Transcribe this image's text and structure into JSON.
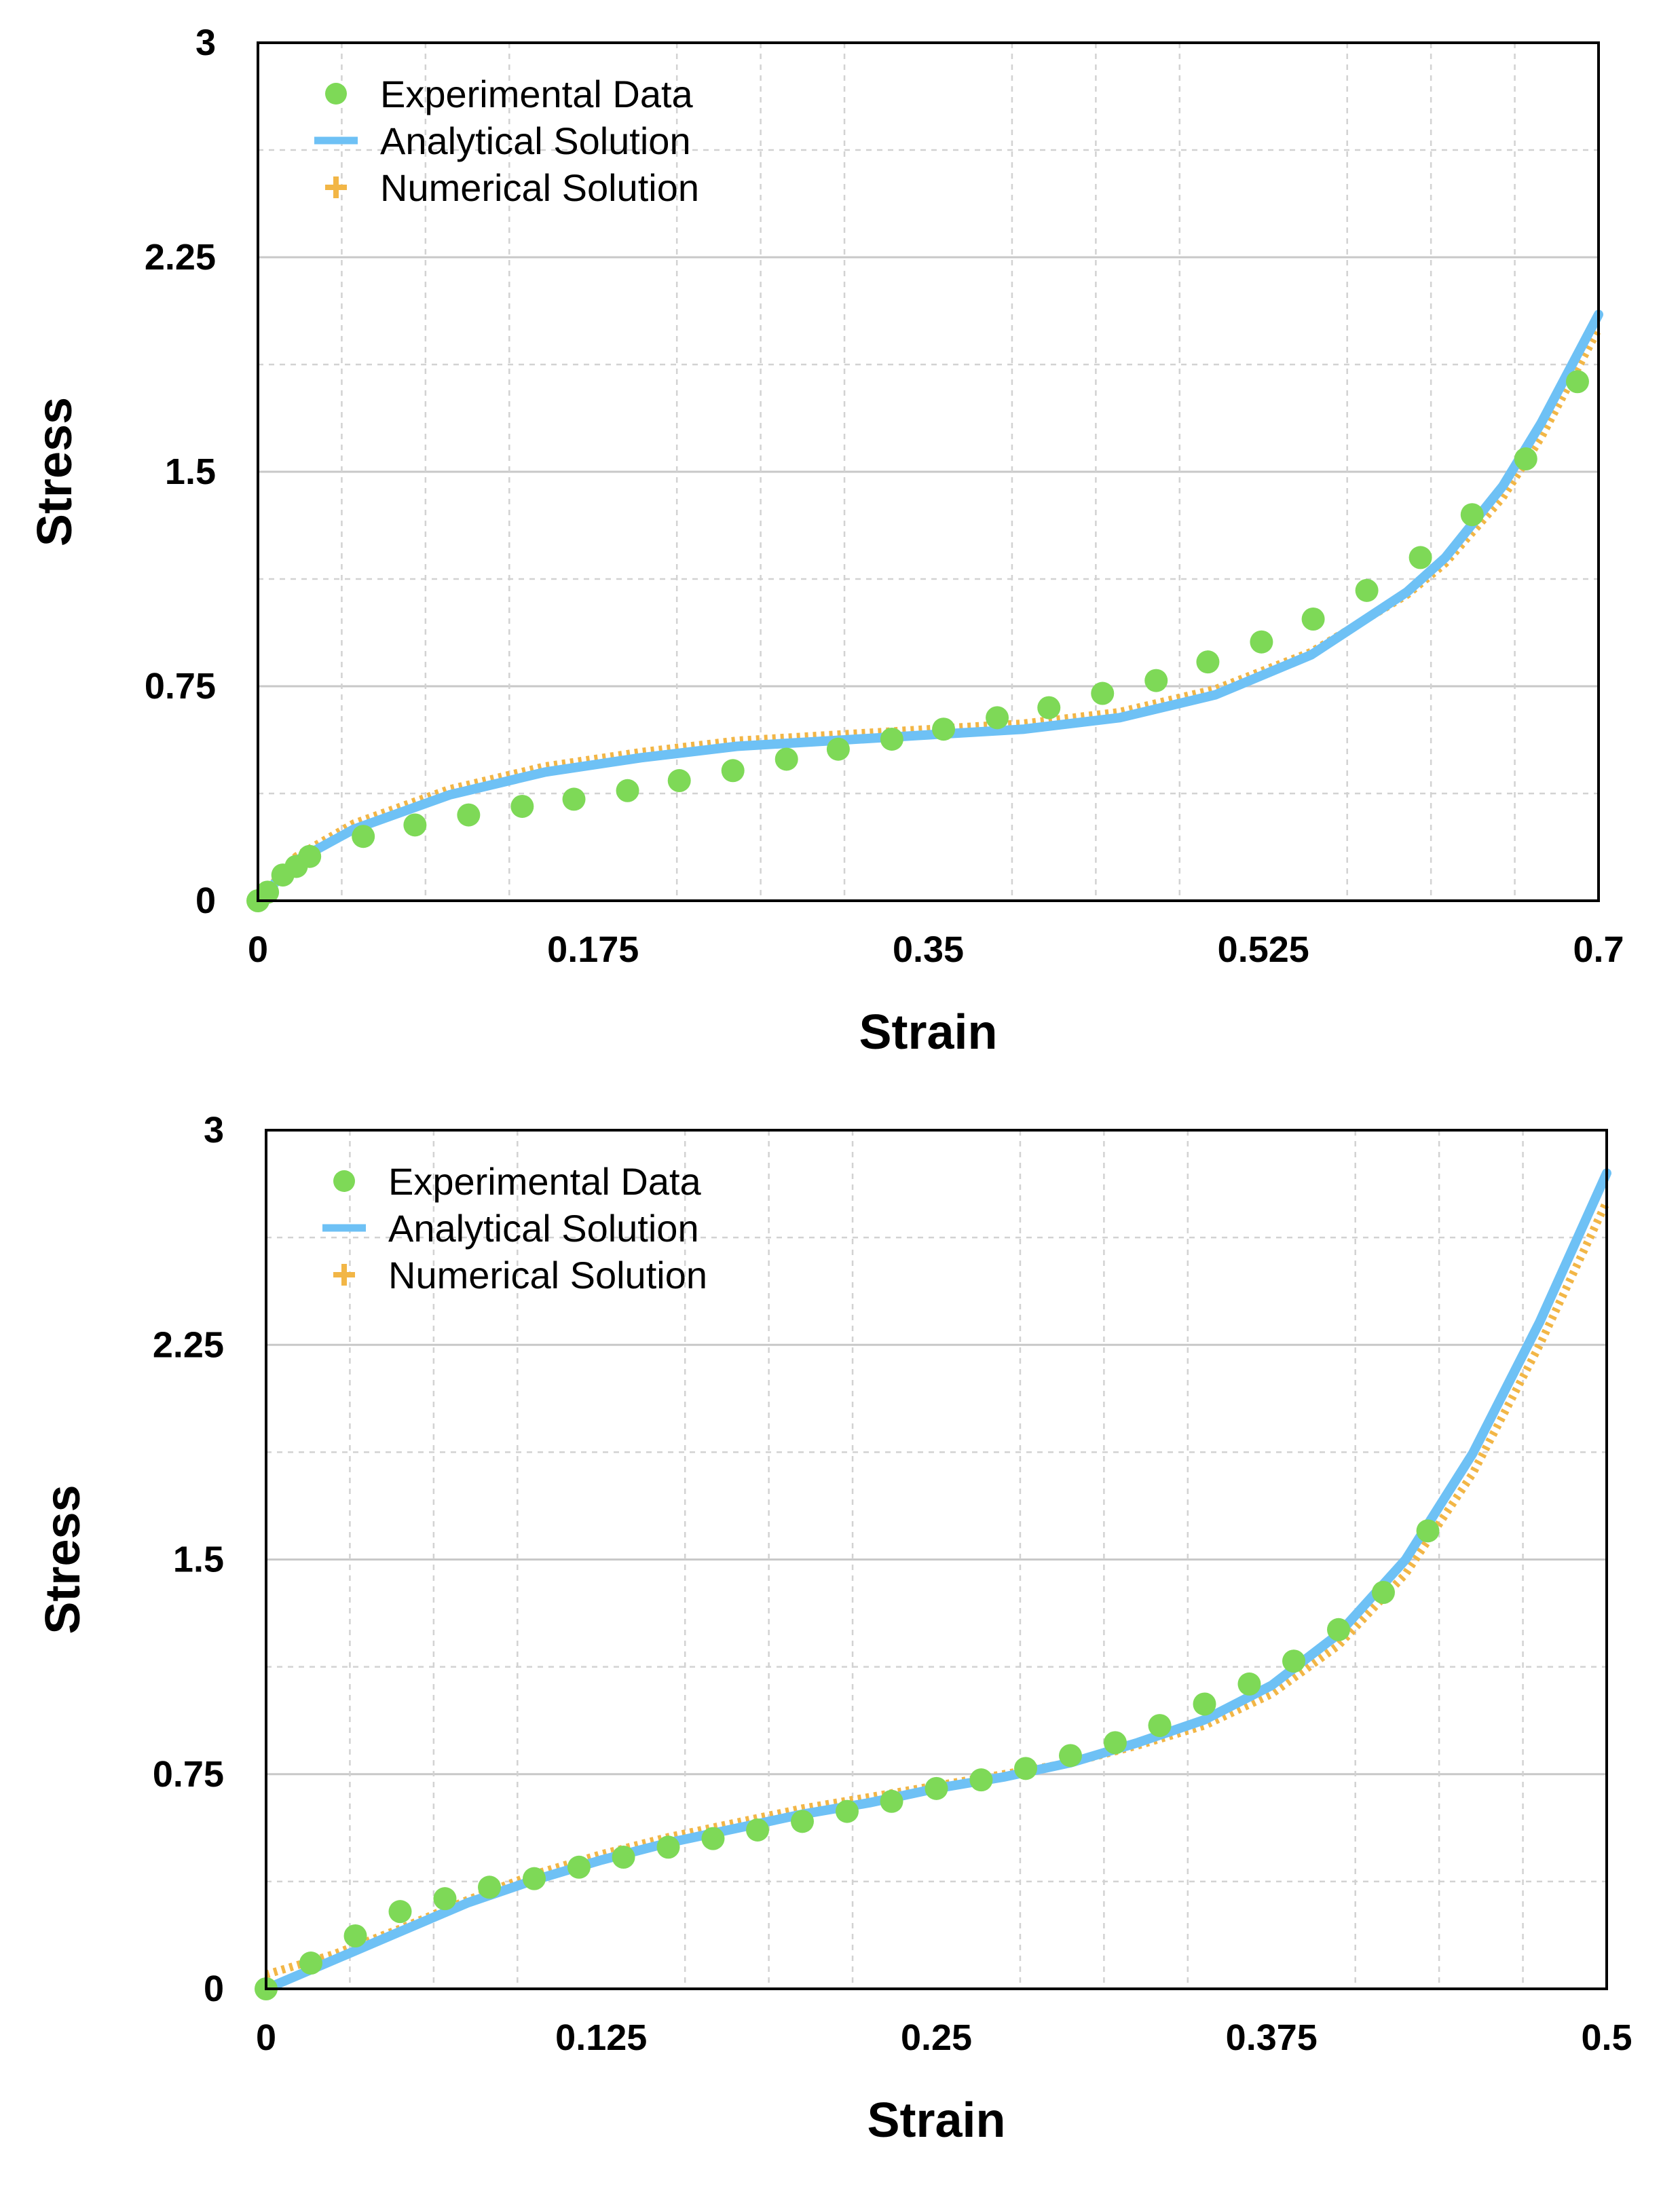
{
  "colors": {
    "experimental": "#7ed957",
    "analytical": "#6ec1f5",
    "numerical": "#f2b646",
    "grid_major": "#c8c8c8",
    "grid_minor": "#d2d2d2",
    "frame": "#000000"
  },
  "chart_data": [
    {
      "type": "scatter",
      "title": "",
      "xlabel": "Strain",
      "ylabel": "Stress",
      "xlim": [
        0,
        0.7
      ],
      "ylim": [
        0,
        3
      ],
      "xticks": [
        "0",
        "0.175",
        "0.35",
        "0.525",
        "0.7"
      ],
      "xtick_values": [
        0,
        0.175,
        0.35,
        0.525,
        0.7
      ],
      "yticks": [
        "0",
        "0.75",
        "1.5",
        "2.25",
        "3"
      ],
      "ytick_values": [
        0,
        0.75,
        1.5,
        2.25,
        3
      ],
      "grid": true,
      "legend_position": "top-left",
      "legend": [
        "Experimental Data",
        "Analytical Solution",
        "Numerical Solution"
      ],
      "series": [
        {
          "name": "Experimental Data",
          "style": "markers",
          "x": [
            0.0,
            0.005,
            0.013,
            0.02,
            0.027,
            0.055,
            0.082,
            0.11,
            0.138,
            0.165,
            0.193,
            0.22,
            0.248,
            0.276,
            0.303,
            0.331,
            0.358,
            0.386,
            0.413,
            0.441,
            0.469,
            0.496,
            0.524,
            0.551,
            0.579,
            0.607,
            0.634,
            0.662,
            0.689
          ],
          "y": [
            0.0,
            0.03,
            0.09,
            0.12,
            0.155,
            0.225,
            0.265,
            0.3,
            0.33,
            0.355,
            0.385,
            0.42,
            0.455,
            0.495,
            0.53,
            0.565,
            0.6,
            0.64,
            0.675,
            0.725,
            0.77,
            0.835,
            0.905,
            0.985,
            1.085,
            1.2,
            1.35,
            1.545,
            1.815
          ]
        },
        {
          "name": "Analytical Solution",
          "style": "line",
          "x": [
            0.0,
            0.02,
            0.05,
            0.1,
            0.15,
            0.2,
            0.25,
            0.3,
            0.35,
            0.4,
            0.45,
            0.5,
            0.55,
            0.6,
            0.62,
            0.65,
            0.67,
            0.7
          ],
          "y": [
            0.0,
            0.14,
            0.25,
            0.37,
            0.45,
            0.5,
            0.54,
            0.56,
            0.58,
            0.6,
            0.64,
            0.72,
            0.86,
            1.08,
            1.2,
            1.45,
            1.67,
            2.05
          ]
        },
        {
          "name": "Numerical Solution",
          "style": "plus",
          "x": [
            0.0,
            0.02,
            0.05,
            0.1,
            0.15,
            0.2,
            0.25,
            0.3,
            0.35,
            0.4,
            0.45,
            0.5,
            0.55,
            0.6,
            0.62,
            0.65,
            0.67,
            0.7
          ],
          "y": [
            0.0,
            0.155,
            0.27,
            0.39,
            0.47,
            0.52,
            0.56,
            0.58,
            0.6,
            0.62,
            0.66,
            0.74,
            0.87,
            1.07,
            1.18,
            1.41,
            1.62,
            2.0
          ]
        }
      ]
    },
    {
      "type": "scatter",
      "title": "",
      "xlabel": "Strain",
      "ylabel": "Stress",
      "xlim": [
        0,
        0.5
      ],
      "ylim": [
        0,
        3
      ],
      "xticks": [
        "0",
        "0.125",
        "0.25",
        "0.375",
        "0.5"
      ],
      "xtick_values": [
        0,
        0.125,
        0.25,
        0.375,
        0.5
      ],
      "yticks": [
        "0",
        "0.75",
        "1.5",
        "2.25",
        "3"
      ],
      "ytick_values": [
        0,
        0.75,
        1.5,
        2.25,
        3
      ],
      "grid": true,
      "legend_position": "top-left",
      "legend": [
        "Experimental Data",
        "Analytical Solution",
        "Numerical Solution"
      ],
      "series": [
        {
          "name": "Experimental Data",
          "style": "markers",
          "x": [
            0.0,
            0.0167,
            0.0333,
            0.05,
            0.0667,
            0.0833,
            0.1,
            0.1167,
            0.1333,
            0.15,
            0.1667,
            0.1833,
            0.2,
            0.2167,
            0.2333,
            0.25,
            0.2667,
            0.2833,
            0.3,
            0.3167,
            0.3333,
            0.35,
            0.3667,
            0.3833,
            0.4,
            0.4167,
            0.4333
          ],
          "y": [
            0.0,
            0.09,
            0.185,
            0.27,
            0.315,
            0.355,
            0.385,
            0.425,
            0.46,
            0.495,
            0.525,
            0.555,
            0.585,
            0.62,
            0.655,
            0.7,
            0.73,
            0.77,
            0.815,
            0.86,
            0.92,
            0.995,
            1.065,
            1.145,
            1.255,
            1.385,
            1.6
          ]
        },
        {
          "name": "Analytical Solution",
          "style": "line",
          "x": [
            0.0,
            0.025,
            0.05,
            0.075,
            0.1,
            0.125,
            0.15,
            0.175,
            0.2,
            0.225,
            0.25,
            0.275,
            0.3,
            0.325,
            0.35,
            0.375,
            0.4,
            0.425,
            0.45,
            0.475,
            0.5
          ],
          "y": [
            0.0,
            0.1,
            0.2,
            0.3,
            0.38,
            0.45,
            0.51,
            0.56,
            0.61,
            0.65,
            0.7,
            0.74,
            0.79,
            0.86,
            0.94,
            1.06,
            1.24,
            1.5,
            1.87,
            2.33,
            2.85
          ]
        },
        {
          "name": "Numerical Solution",
          "style": "plus",
          "x": [
            0.0,
            0.025,
            0.05,
            0.075,
            0.1,
            0.125,
            0.15,
            0.175,
            0.2,
            0.225,
            0.25,
            0.275,
            0.3,
            0.325,
            0.35,
            0.375,
            0.4,
            0.425,
            0.45,
            0.475,
            0.5
          ],
          "y": [
            0.05,
            0.12,
            0.21,
            0.31,
            0.4,
            0.47,
            0.53,
            0.58,
            0.63,
            0.67,
            0.71,
            0.75,
            0.79,
            0.85,
            0.92,
            1.03,
            1.2,
            1.45,
            1.8,
            2.25,
            2.75
          ]
        }
      ]
    }
  ]
}
